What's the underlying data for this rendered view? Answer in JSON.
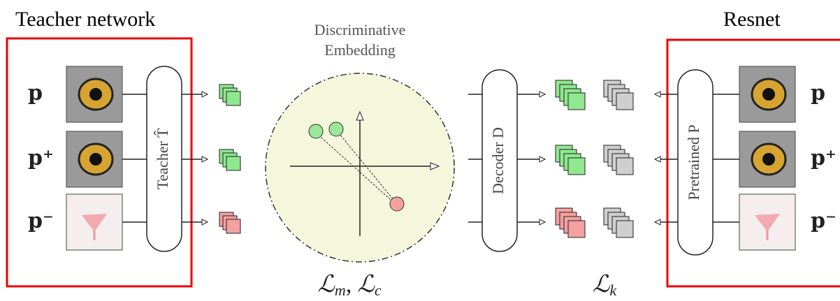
{
  "header": {
    "left_title": "Teacher network",
    "right_title": "Resnet"
  },
  "embedding": {
    "title": [
      "Discriminative",
      "Embedding"
    ]
  },
  "inputs": {
    "left": [
      "p",
      "p⁺",
      "p⁻"
    ],
    "right": [
      "p",
      "p⁺",
      "p⁻"
    ]
  },
  "modules": {
    "teacher": "Teacher T̂",
    "decoder": "Decoder D",
    "pretrained": "Pretrained P"
  },
  "losses": {
    "embedding": [
      {
        "symbol": "ℒ",
        "sub": "m"
      },
      {
        "symbol": "ℒ",
        "sub": "c"
      }
    ],
    "separator": ",",
    "decoder": [
      {
        "symbol": "ℒ",
        "sub": "k"
      }
    ]
  }
}
